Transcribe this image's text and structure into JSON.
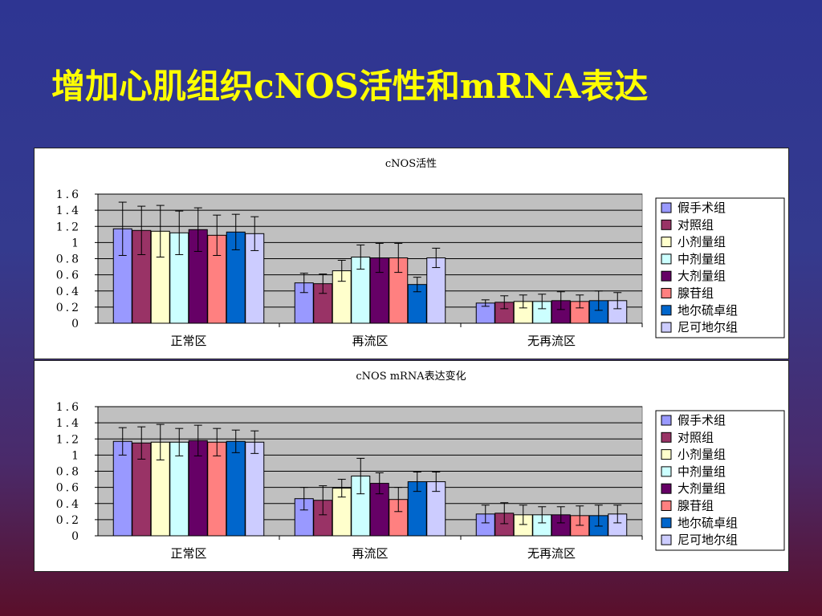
{
  "slide": {
    "title": "增加心肌组织cNOS活性和mRNA表达"
  },
  "legend_entries": [
    {
      "name": "假手术组",
      "color": "#9999ff"
    },
    {
      "name": "对照组",
      "color": "#993366"
    },
    {
      "name": "小剂量组",
      "color": "#ffffcc"
    },
    {
      "name": "中剂量组",
      "color": "#ccffff"
    },
    {
      "name": "大剂量组",
      "color": "#660066"
    },
    {
      "name": "腺苷组",
      "color": "#ff8080"
    },
    {
      "name": "地尔硫卓组",
      "color": "#0066cc"
    },
    {
      "name": "尼可地尔组",
      "color": "#ccccff"
    }
  ],
  "chart_data": [
    {
      "type": "bar",
      "title": "cNOS活性",
      "categories": [
        "正常区",
        "再流区",
        "无再流区"
      ],
      "ylim": [
        0,
        1.6
      ],
      "yticks": [
        "0",
        "0.2",
        "0.4",
        "0.6",
        "0.8",
        "1",
        "1.2",
        "1.4",
        "1.6"
      ],
      "grid": true,
      "legend": "right",
      "series": [
        {
          "name": "假手术组",
          "values": [
            1.17,
            0.5,
            0.25
          ],
          "errors": [
            0.33,
            0.12,
            0.04
          ]
        },
        {
          "name": "对照组",
          "values": [
            1.15,
            0.49,
            0.26
          ],
          "errors": [
            0.3,
            0.12,
            0.08
          ]
        },
        {
          "name": "小剂量组",
          "values": [
            1.14,
            0.65,
            0.27
          ],
          "errors": [
            0.32,
            0.13,
            0.08
          ]
        },
        {
          "name": "中剂量组",
          "values": [
            1.12,
            0.82,
            0.27
          ],
          "errors": [
            0.27,
            0.15,
            0.09
          ]
        },
        {
          "name": "大剂量组",
          "values": [
            1.16,
            0.81,
            0.28
          ],
          "errors": [
            0.27,
            0.18,
            0.11
          ]
        },
        {
          "name": "腺苷组",
          "values": [
            1.09,
            0.81,
            0.27
          ],
          "errors": [
            0.25,
            0.18,
            0.08
          ]
        },
        {
          "name": "地尔硫卓组",
          "values": [
            1.13,
            0.48,
            0.28
          ],
          "errors": [
            0.22,
            0.09,
            0.12
          ]
        },
        {
          "name": "尼可地尔组",
          "values": [
            1.11,
            0.81,
            0.28
          ],
          "errors": [
            0.21,
            0.12,
            0.1
          ]
        }
      ]
    },
    {
      "type": "bar",
      "title": "cNOS  mRNA表达变化",
      "categories": [
        "正常区",
        "再流区",
        "无再流区"
      ],
      "ylim": [
        0,
        1.6
      ],
      "yticks": [
        "0",
        "0.2",
        "0.4",
        "0.6",
        "0.8",
        "1",
        "1.2",
        "1.4",
        "1.6"
      ],
      "grid": true,
      "legend": "right",
      "series": [
        {
          "name": "假手术组",
          "values": [
            1.17,
            0.46,
            0.27
          ],
          "errors": [
            0.17,
            0.14,
            0.11
          ]
        },
        {
          "name": "对照组",
          "values": [
            1.15,
            0.44,
            0.28
          ],
          "errors": [
            0.2,
            0.18,
            0.13
          ]
        },
        {
          "name": "小剂量组",
          "values": [
            1.16,
            0.59,
            0.26
          ],
          "errors": [
            0.22,
            0.11,
            0.12
          ]
        },
        {
          "name": "中剂量组",
          "values": [
            1.16,
            0.74,
            0.26
          ],
          "errors": [
            0.17,
            0.22,
            0.1
          ]
        },
        {
          "name": "大剂量组",
          "values": [
            1.18,
            0.65,
            0.26
          ],
          "errors": [
            0.19,
            0.13,
            0.1
          ]
        },
        {
          "name": "腺苷组",
          "values": [
            1.16,
            0.45,
            0.25
          ],
          "errors": [
            0.17,
            0.15,
            0.12
          ]
        },
        {
          "name": "地尔硫卓组",
          "values": [
            1.17,
            0.67,
            0.25
          ],
          "errors": [
            0.14,
            0.12,
            0.13
          ]
        },
        {
          "name": "尼可地尔组",
          "values": [
            1.16,
            0.67,
            0.27
          ],
          "errors": [
            0.14,
            0.12,
            0.11
          ]
        }
      ]
    }
  ]
}
